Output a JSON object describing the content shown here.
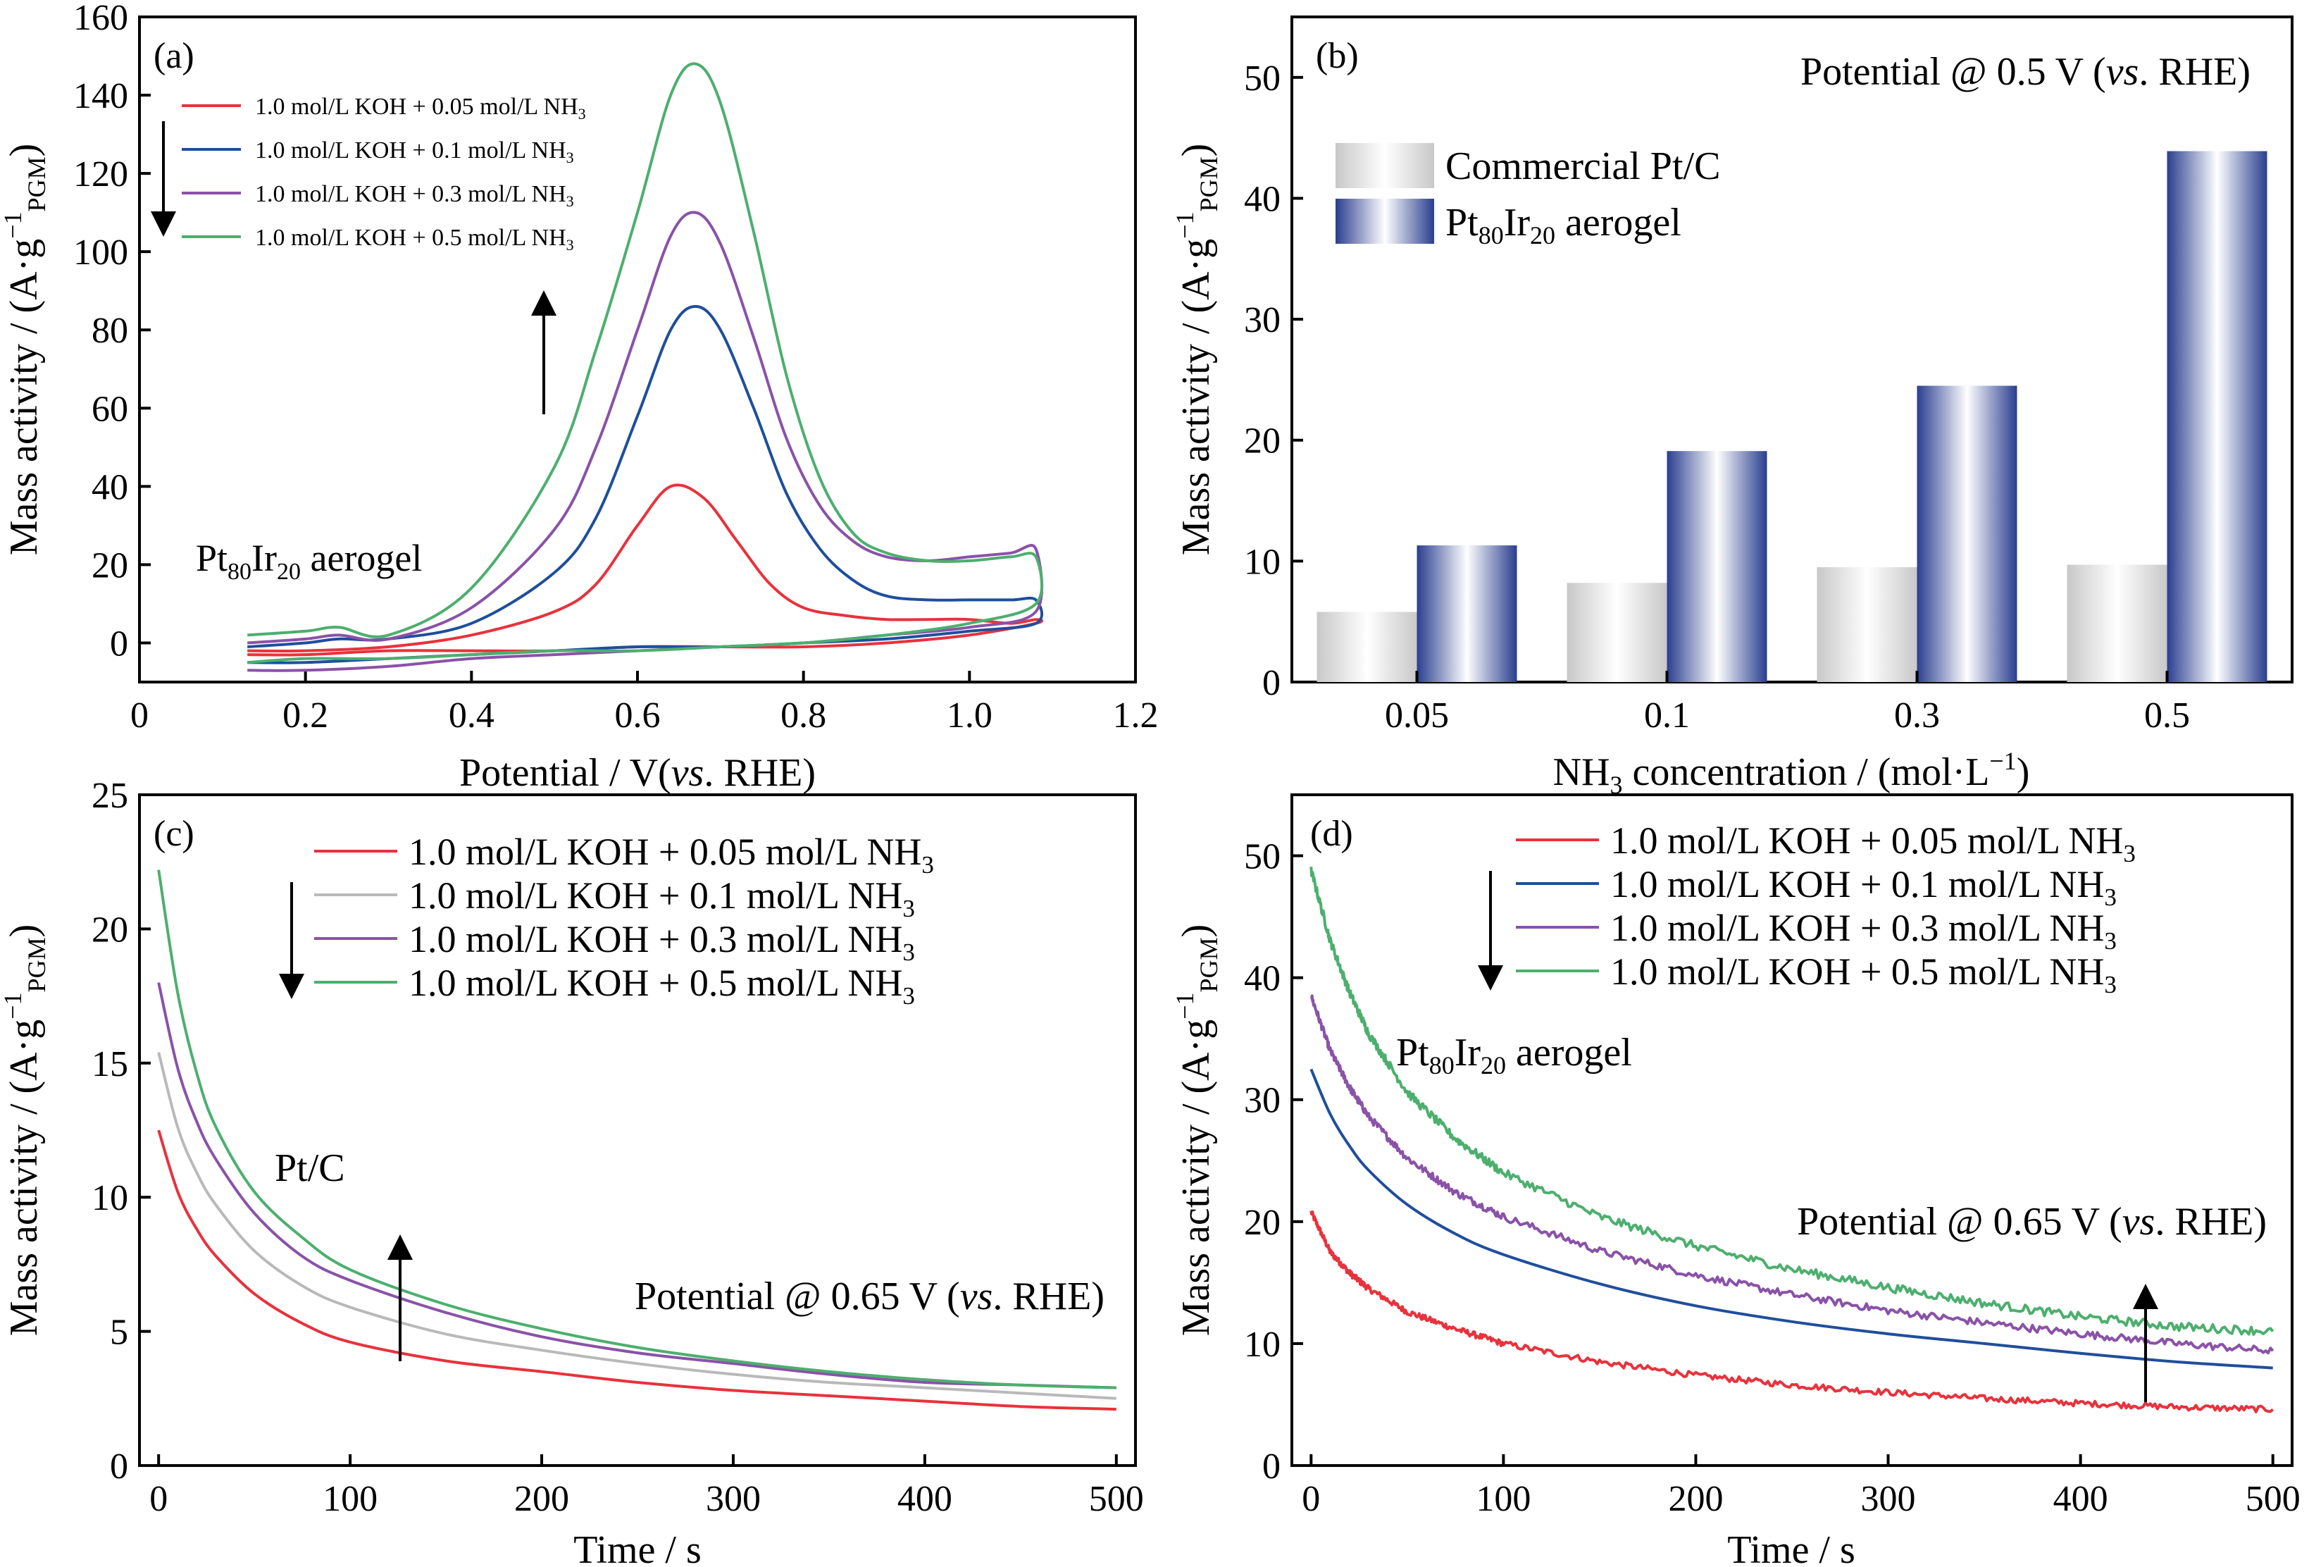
{
  "colors": {
    "red": "#e8323c",
    "blue": "#1f4e9c",
    "purple": "#8a52a8",
    "green": "#4caf6e",
    "grey": "#b9b9b9",
    "bar_grey_edge": "#c8c8c8",
    "bar_blue_edge": "#2a3e8e"
  },
  "chart_data": [
    {
      "id": "a",
      "type": "line",
      "panel_label": "(a)",
      "xlabel": "Potential / V(vs. RHE)",
      "ylabel": "Mass activity / (A·g−1PGM)",
      "xlim": [
        0,
        1.2
      ],
      "ylim": [
        -10,
        160
      ],
      "xticks": [
        "0",
        "0.2",
        "0.4",
        "0.6",
        "0.8",
        "1.0",
        "1.2"
      ],
      "xtick_values": [
        0,
        0.2,
        0.4,
        0.6,
        0.8,
        1.0,
        1.2
      ],
      "yticks": [
        "0",
        "20",
        "40",
        "60",
        "80",
        "100",
        "120",
        "140",
        "160"
      ],
      "ytick_values": [
        0,
        20,
        40,
        60,
        80,
        100,
        120,
        140,
        160
      ],
      "annotation": "Pt80Ir20 aerogel",
      "legend": [
        {
          "name": "1.0 mol/L KOH + 0.05 mol/L NH3",
          "color": "#e8323c"
        },
        {
          "name": "1.0 mol/L KOH + 0.1 mol/L NH3",
          "color": "#1f4e9c"
        },
        {
          "name": "1.0 mol/L KOH + 0.3 mol/L NH3",
          "color": "#8a52a8"
        },
        {
          "name": "1.0 mol/L KOH + 0.5 mol/L NH3",
          "color": "#4caf6e"
        }
      ],
      "series": [
        {
          "name": "1.0 mol/L KOH + 0.05 mol/L NH3",
          "color": "#e8323c",
          "x": [
            0.13,
            0.2,
            0.3,
            0.4,
            0.5,
            0.55,
            0.6,
            0.64,
            0.68,
            0.72,
            0.76,
            0.8,
            0.85,
            0.9,
            0.95,
            1.0,
            1.05,
            1.08,
            1.08,
            1.0,
            0.9,
            0.8,
            0.7,
            0.6,
            0.5,
            0.4,
            0.3,
            0.2,
            0.13
          ],
          "y": [
            -2,
            -2,
            -1,
            2,
            8,
            15,
            30,
            40,
            37,
            26,
            15,
            9,
            7,
            6,
            6,
            6,
            5,
            6,
            5,
            2,
            0,
            -1,
            -1,
            -1,
            -2,
            -2,
            -2,
            -3,
            -3
          ]
        },
        {
          "name": "1.0 mol/L KOH + 0.1 mol/L NH3",
          "color": "#1f4e9c",
          "x": [
            0.13,
            0.2,
            0.24,
            0.3,
            0.4,
            0.5,
            0.55,
            0.6,
            0.64,
            0.67,
            0.7,
            0.74,
            0.78,
            0.82,
            0.86,
            0.9,
            0.95,
            1.0,
            1.05,
            1.08,
            1.08,
            1.0,
            0.9,
            0.8,
            0.7,
            0.6,
            0.5,
            0.4,
            0.3,
            0.2,
            0.13
          ],
          "y": [
            -1,
            0,
            1,
            1,
            5,
            18,
            32,
            58,
            80,
            86,
            80,
            60,
            38,
            24,
            16,
            12,
            11,
            11,
            11,
            11,
            5,
            3,
            1,
            0,
            -1,
            -1,
            -2,
            -3,
            -4,
            -5,
            -5
          ]
        },
        {
          "name": "1.0 mol/L KOH + 0.3 mol/L NH3",
          "color": "#8a52a8",
          "x": [
            0.13,
            0.2,
            0.24,
            0.3,
            0.4,
            0.5,
            0.55,
            0.6,
            0.64,
            0.67,
            0.7,
            0.74,
            0.78,
            0.82,
            0.86,
            0.9,
            0.95,
            1.0,
            1.05,
            1.08,
            1.08,
            1.0,
            0.9,
            0.8,
            0.7,
            0.6,
            0.5,
            0.4,
            0.3,
            0.2,
            0.13
          ],
          "y": [
            0,
            1,
            2,
            1,
            9,
            29,
            50,
            80,
            104,
            110,
            102,
            78,
            52,
            35,
            26,
            22,
            21,
            22,
            23,
            24,
            8,
            4,
            2,
            0,
            -1,
            -2,
            -3,
            -4,
            -6,
            -7,
            -7
          ]
        },
        {
          "name": "1.0 mol/L KOH + 0.5 mol/L NH3",
          "color": "#4caf6e",
          "x": [
            0.13,
            0.2,
            0.24,
            0.3,
            0.4,
            0.5,
            0.55,
            0.6,
            0.64,
            0.67,
            0.7,
            0.74,
            0.78,
            0.82,
            0.86,
            0.9,
            0.95,
            1.0,
            1.05,
            1.08,
            1.08,
            1.0,
            0.9,
            0.8,
            0.7,
            0.6,
            0.5,
            0.4,
            0.3,
            0.2,
            0.13
          ],
          "y": [
            2,
            3,
            4,
            2,
            14,
            45,
            75,
            110,
            140,
            148,
            138,
            105,
            68,
            42,
            28,
            23,
            21,
            21,
            22,
            22,
            10,
            5,
            2,
            0,
            -1,
            -2,
            -2,
            -3,
            -4,
            -4,
            -5
          ]
        }
      ]
    },
    {
      "id": "b",
      "type": "bar",
      "panel_label": "(b)",
      "annotation": "Potential @ 0.5 V (vs. RHE)",
      "xlabel": "NH3 concentration / (mol·L−1)",
      "ylabel": "Mass activity / (A·g−1PGM)",
      "categories": [
        "0.05",
        "0.1",
        "0.3",
        "0.5"
      ],
      "ylim": [
        0,
        55
      ],
      "yticks": [
        "0",
        "10",
        "20",
        "30",
        "40",
        "50"
      ],
      "ytick_values": [
        0,
        10,
        20,
        30,
        40,
        50
      ],
      "series": [
        {
          "name": "Commercial Pt/C",
          "values": [
            5.8,
            8.2,
            9.5,
            9.7
          ]
        },
        {
          "name": "Pt80Ir20 aerogel",
          "values": [
            11.3,
            19.1,
            24.5,
            43.9
          ]
        }
      ]
    },
    {
      "id": "c",
      "type": "line",
      "panel_label": "(c)",
      "xlabel": "Time / s",
      "ylabel": "Mass activity / (A·g−1PGM)",
      "xlim": [
        -10,
        510
      ],
      "ylim": [
        0,
        25
      ],
      "xticks": [
        "0",
        "100",
        "200",
        "300",
        "400",
        "500"
      ],
      "xtick_values": [
        0,
        100,
        200,
        300,
        400,
        500
      ],
      "yticks": [
        "0",
        "5",
        "10",
        "15",
        "20",
        "25"
      ],
      "ytick_values": [
        0,
        5,
        10,
        15,
        20,
        25
      ],
      "annotation": "Pt/C",
      "annotation2": "Potential @ 0.65 V (vs. RHE)",
      "legend": [
        {
          "name": "1.0 mol/L KOH + 0.05 mol/L NH3",
          "color": "#e8323c"
        },
        {
          "name": "1.0 mol/L KOH + 0.1 mol/L NH3",
          "color": "#b9b9b9"
        },
        {
          "name": "1.0 mol/L KOH + 0.3 mol/L NH3",
          "color": "#8a52a8"
        },
        {
          "name": "1.0 mol/L KOH + 0.5 mol/L NH3",
          "color": "#4caf6e"
        }
      ],
      "series": [
        {
          "name": "1.0 mol/L KOH + 0.05 mol/L NH3",
          "color": "#e8323c",
          "x": [
            0,
            10,
            20,
            30,
            50,
            75,
            100,
            150,
            200,
            250,
            300,
            350,
            400,
            450,
            500
          ],
          "y": [
            12.5,
            10.2,
            8.8,
            7.8,
            6.4,
            5.3,
            4.6,
            3.9,
            3.5,
            3.1,
            2.8,
            2.6,
            2.4,
            2.2,
            2.1
          ]
        },
        {
          "name": "1.0 mol/L KOH + 0.1 mol/L NH3",
          "color": "#b9b9b9",
          "x": [
            0,
            10,
            20,
            30,
            50,
            75,
            100,
            150,
            200,
            250,
            300,
            350,
            400,
            450,
            500
          ],
          "y": [
            15.4,
            12.6,
            10.9,
            9.7,
            8.0,
            6.7,
            5.9,
            4.9,
            4.3,
            3.8,
            3.4,
            3.1,
            2.9,
            2.7,
            2.5
          ]
        },
        {
          "name": "1.0 mol/L KOH + 0.3 mol/L NH3",
          "color": "#8a52a8",
          "x": [
            0,
            10,
            20,
            30,
            50,
            75,
            100,
            150,
            200,
            250,
            300,
            350,
            400,
            450,
            500
          ],
          "y": [
            18.0,
            14.8,
            12.8,
            11.4,
            9.4,
            7.8,
            6.9,
            5.7,
            4.8,
            4.2,
            3.8,
            3.4,
            3.1,
            3.0,
            2.9
          ]
        },
        {
          "name": "1.0 mol/L KOH + 0.5 mol/L NH3",
          "color": "#4caf6e",
          "x": [
            0,
            10,
            20,
            30,
            50,
            75,
            100,
            150,
            200,
            250,
            300,
            350,
            400,
            450,
            500
          ],
          "y": [
            22.2,
            17.6,
            14.6,
            12.6,
            10.2,
            8.5,
            7.3,
            6.0,
            5.1,
            4.4,
            3.9,
            3.5,
            3.2,
            3.0,
            2.9
          ]
        }
      ]
    },
    {
      "id": "d",
      "type": "line",
      "panel_label": "(d)",
      "xlabel": "Time / s",
      "ylabel": "Mass activity / (A·g−1PGM)",
      "xlim": [
        -10,
        510
      ],
      "ylim": [
        0,
        55
      ],
      "xticks": [
        "0",
        "100",
        "200",
        "300",
        "400",
        "500"
      ],
      "xtick_values": [
        0,
        100,
        200,
        300,
        400,
        500
      ],
      "yticks": [
        "0",
        "10",
        "20",
        "30",
        "40",
        "50"
      ],
      "ytick_values": [
        0,
        10,
        20,
        30,
        40,
        50
      ],
      "annotation": "Pt80Ir20 aerogel",
      "annotation2": "Potential @ 0.65 V (vs. RHE)",
      "legend": [
        {
          "name": "1.0 mol/L KOH + 0.05 mol/L NH3",
          "color": "#e8323c"
        },
        {
          "name": "1.0 mol/L KOH + 0.1 mol/L NH3",
          "color": "#1f4e9c"
        },
        {
          "name": "1.0 mol/L KOH + 0.3 mol/L NH3",
          "color": "#8a52a8"
        },
        {
          "name": "1.0 mol/L KOH + 0.5 mol/L NH3",
          "color": "#4caf6e"
        }
      ],
      "series": [
        {
          "name": "1.0 mol/L KOH + 0.05 mol/L NH3",
          "color": "#e8323c",
          "noise": 0.25,
          "x": [
            0,
            10,
            20,
            30,
            50,
            75,
            100,
            150,
            200,
            250,
            300,
            350,
            400,
            450,
            500
          ],
          "y": [
            20.8,
            17.5,
            15.8,
            14.5,
            12.6,
            11.2,
            10.0,
            8.5,
            7.4,
            6.6,
            6.0,
            5.5,
            5.1,
            4.8,
            4.6
          ]
        },
        {
          "name": "1.0 mol/L KOH + 0.1 mol/L NH3",
          "color": "#1f4e9c",
          "noise": 0,
          "x": [
            0,
            10,
            20,
            30,
            50,
            75,
            100,
            150,
            200,
            250,
            300,
            350,
            400,
            450,
            500
          ],
          "y": [
            32.5,
            28.8,
            26.2,
            24.2,
            21.4,
            19.0,
            17.3,
            14.9,
            13.1,
            11.8,
            10.8,
            10.0,
            9.2,
            8.5,
            8.0
          ]
        },
        {
          "name": "1.0 mol/L KOH + 0.3 mol/L NH3",
          "color": "#8a52a8",
          "noise": 0.3,
          "x": [
            0,
            10,
            20,
            30,
            50,
            75,
            100,
            150,
            200,
            250,
            300,
            350,
            400,
            450,
            500
          ],
          "y": [
            38.5,
            34.0,
            31.0,
            28.6,
            25.2,
            22.4,
            20.4,
            17.6,
            15.6,
            14.0,
            12.7,
            11.7,
            10.8,
            10.0,
            9.4
          ]
        },
        {
          "name": "1.0 mol/L KOH + 0.5 mol/L NH3",
          "color": "#4caf6e",
          "noise": 0.35,
          "x": [
            0,
            10,
            20,
            30,
            50,
            75,
            100,
            150,
            200,
            250,
            300,
            350,
            400,
            450,
            500
          ],
          "y": [
            48.8,
            43.0,
            38.8,
            35.4,
            30.6,
            26.8,
            24.0,
            20.4,
            18.0,
            16.1,
            14.6,
            13.3,
            12.2,
            11.4,
            11.0
          ]
        }
      ]
    }
  ]
}
